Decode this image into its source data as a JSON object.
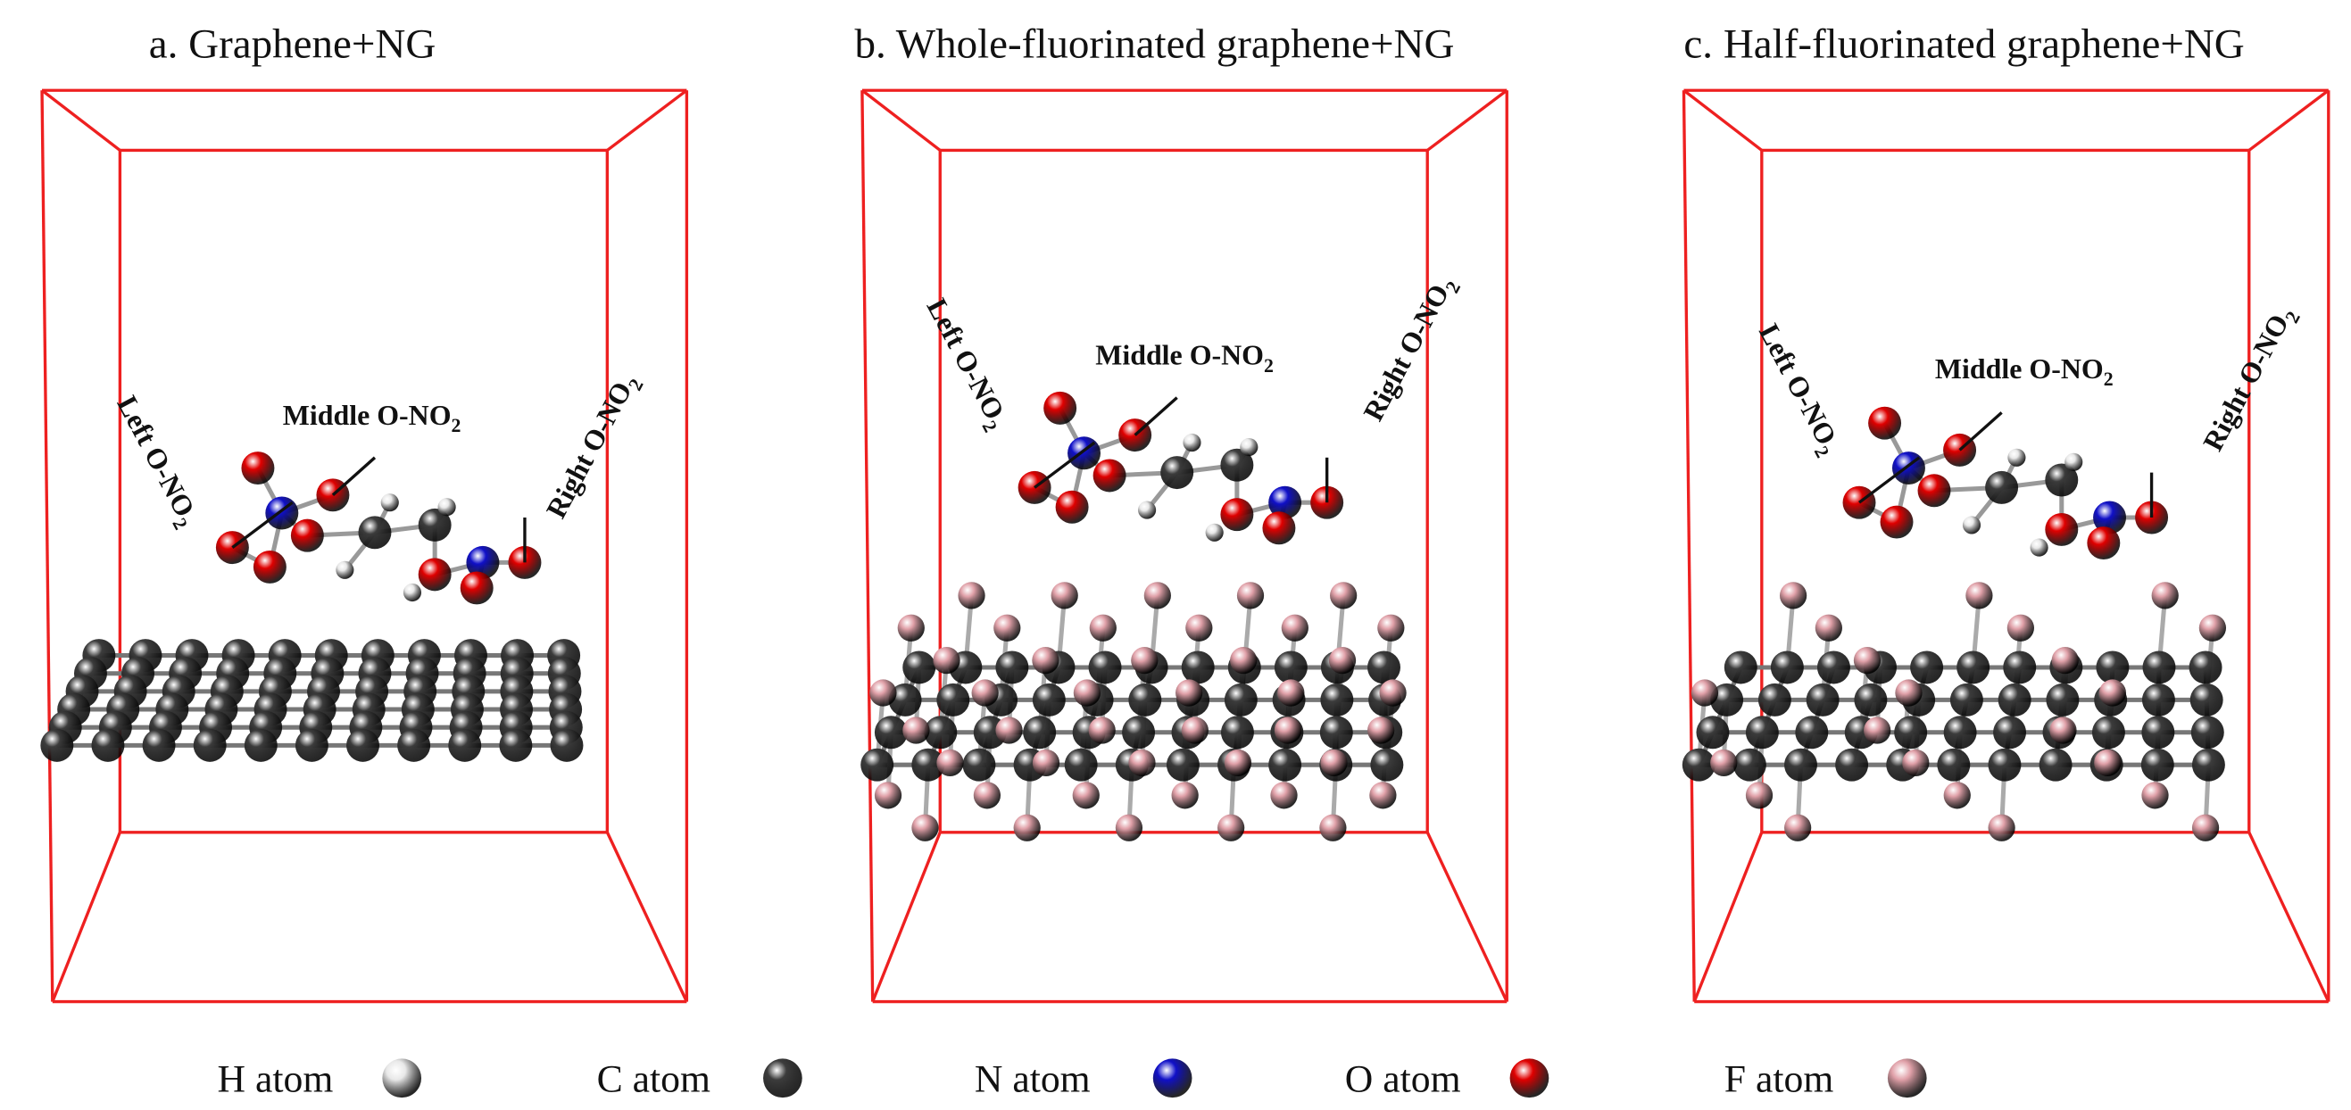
{
  "panels": [
    {
      "title": "a. Graphene+NG",
      "surface": "graphene",
      "labels": [
        {
          "text": "Left O-NO",
          "sub": "2"
        },
        {
          "text": "Middle O-NO",
          "sub": "2"
        },
        {
          "text": "Right O-NO",
          "sub": "2"
        }
      ]
    },
    {
      "title": "b. Whole-fluorinated graphene+NG",
      "surface": "whole-fluorinated",
      "labels": [
        {
          "text": "Left O-NO",
          "sub": "2"
        },
        {
          "text": "Middle O-NO",
          "sub": "2"
        },
        {
          "text": "Right O-NO",
          "sub": "2"
        }
      ]
    },
    {
      "title": "c. Half-fluorinated graphene+NG",
      "surface": "half-fluorinated",
      "labels": [
        {
          "text": "Left O-NO",
          "sub": "2"
        },
        {
          "text": "Middle O-NO",
          "sub": "2"
        },
        {
          "text": "Right O-NO",
          "sub": "2"
        }
      ]
    }
  ],
  "legend": [
    {
      "label": "H atom",
      "color": "#e8e8e8"
    },
    {
      "label": "C atom",
      "color": "#3c3c3c"
    },
    {
      "label": "N atom",
      "color": "#1010c8"
    },
    {
      "label": "O atom",
      "color": "#e00000"
    },
    {
      "label": "F atom",
      "color": "#e0a0a8"
    }
  ]
}
